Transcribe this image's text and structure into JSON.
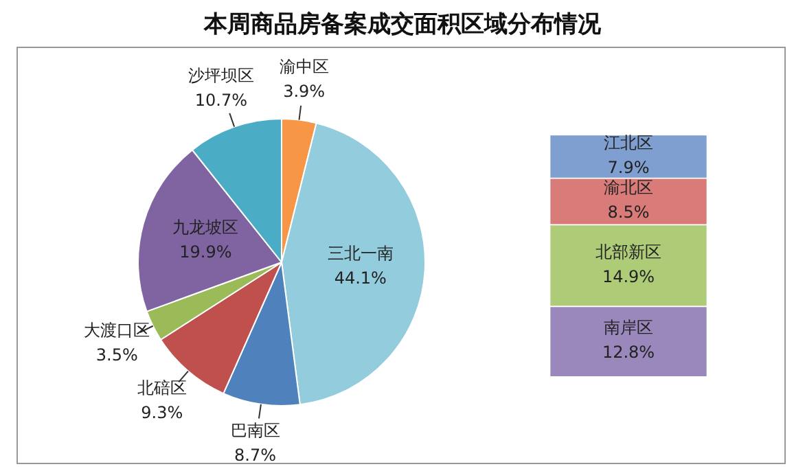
{
  "chart_data": [
    {
      "type": "pie",
      "title": "本周商品房备案成交面积区域分布情况",
      "categories": [
        "渝中区",
        "三北一南",
        "巴南区",
        "北碚区",
        "大渡口区",
        "九龙坡区",
        "沙坪坝区"
      ],
      "values": [
        3.9,
        44.1,
        8.7,
        9.3,
        3.5,
        19.9,
        10.7
      ],
      "value_labels": [
        "3.9%",
        "44.1%",
        "8.7%",
        "9.3%",
        "3.5%",
        "19.9%",
        "10.7%"
      ],
      "colors": [
        "#f79646",
        "#93cddd",
        "#4f81bd",
        "#c0504d",
        "#9bbb59",
        "#8064a2",
        "#4bacc6"
      ],
      "legend": false
    },
    {
      "type": "bar",
      "stacked": true,
      "categories": [
        null
      ],
      "series": [
        {
          "name": "南岸区",
          "color": "#9a87bb",
          "values": [
            12.8
          ],
          "value_labels": [
            "12.8%"
          ]
        },
        {
          "name": "北部新区",
          "color": "#aecb78",
          "values": [
            14.9
          ],
          "value_labels": [
            "14.9%"
          ]
        },
        {
          "name": "渝北区",
          "color": "#d97b79",
          "values": [
            8.5
          ],
          "value_labels": [
            "8.5%"
          ]
        },
        {
          "name": "江北区",
          "color": "#7f9fd0",
          "values": [
            7.9
          ],
          "value_labels": [
            "7.9%"
          ]
        }
      ],
      "legend": false
    }
  ]
}
